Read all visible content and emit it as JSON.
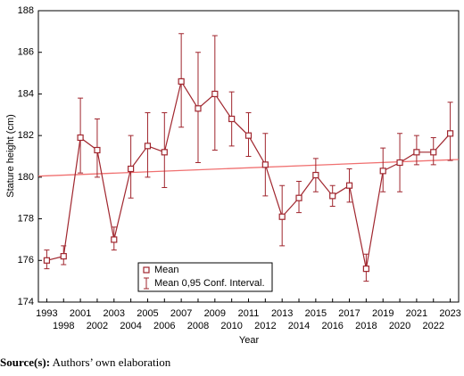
{
  "chart_data": {
    "type": "line",
    "ylabel": "Stature height (cm)",
    "xlabel": "Year",
    "categories": [
      "1993",
      "1998",
      "2001",
      "2002",
      "2003",
      "2004",
      "2005",
      "2006",
      "2007",
      "2008",
      "2009",
      "2010",
      "2011",
      "2012",
      "2013",
      "2014",
      "2015",
      "2016",
      "2017",
      "2018",
      "2019",
      "2020",
      "2021",
      "2022",
      "2023"
    ],
    "series": [
      {
        "name": "Mean",
        "color": "#a0262e",
        "values": [
          176.0,
          176.2,
          181.9,
          181.3,
          177.0,
          180.4,
          181.5,
          181.2,
          184.6,
          183.3,
          184.0,
          182.8,
          182.0,
          180.6,
          178.1,
          179.0,
          180.1,
          179.1,
          179.6,
          175.6,
          180.3,
          180.7,
          181.2,
          181.2,
          182.1
        ]
      }
    ],
    "error_bars": {
      "name": "Mean 0,95 Conf. Interval.",
      "color": "#a0262e",
      "lower": [
        175.6,
        175.8,
        180.2,
        180.0,
        176.5,
        179.0,
        180.0,
        179.5,
        182.4,
        180.7,
        181.3,
        181.5,
        181.0,
        179.1,
        176.7,
        178.3,
        179.3,
        178.6,
        178.8,
        175.0,
        179.3,
        179.3,
        180.6,
        180.6,
        180.8
      ],
      "upper": [
        176.5,
        176.7,
        183.8,
        182.8,
        177.6,
        182.0,
        183.1,
        183.1,
        186.9,
        186.0,
        186.8,
        184.1,
        183.1,
        182.1,
        179.6,
        179.8,
        180.9,
        179.6,
        180.4,
        176.3,
        181.4,
        182.1,
        182.0,
        181.9,
        183.6
      ]
    },
    "trend_line": {
      "color": "#f07070",
      "values": [
        180.05,
        180.85
      ]
    },
    "ylim": [
      174,
      188
    ],
    "yticks": [
      174,
      176,
      178,
      180,
      182,
      184,
      186,
      188
    ],
    "grid": false,
    "legend": "lower-left",
    "source_label": "Source(s):",
    "source_text": "Authors’ own elaboration"
  }
}
